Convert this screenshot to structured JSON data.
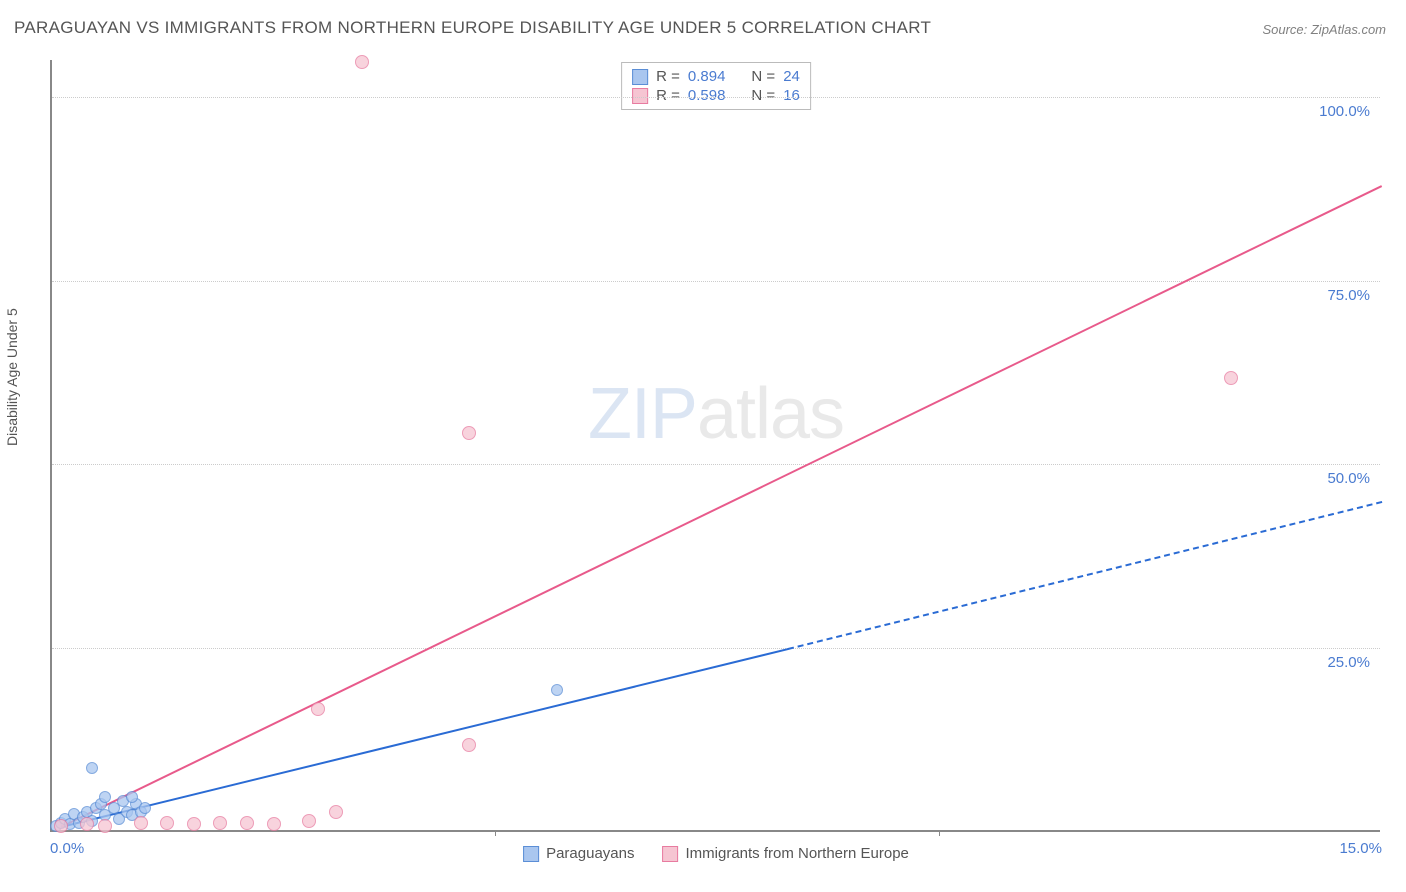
{
  "title": "PARAGUAYAN VS IMMIGRANTS FROM NORTHERN EUROPE DISABILITY AGE UNDER 5 CORRELATION CHART",
  "source": "Source: ZipAtlas.com",
  "y_axis_title": "Disability Age Under 5",
  "watermark_zip": "ZIP",
  "watermark_atlas": "atlas",
  "chart": {
    "type": "scatter",
    "background_color": "#ffffff",
    "grid_color": "#cccccc",
    "axis_color": "#888888",
    "tick_label_color": "#4a7bd0",
    "tick_fontsize": 15,
    "title_fontsize": 17,
    "xlim": [
      0,
      15
    ],
    "ylim": [
      0,
      105
    ],
    "x_tick_step": 5,
    "x_labels": [
      {
        "v": 0,
        "t": "0.0%"
      },
      {
        "v": 15,
        "t": "15.0%"
      }
    ],
    "y_labels": [
      {
        "v": 25,
        "t": "25.0%"
      },
      {
        "v": 50,
        "t": "50.0%"
      },
      {
        "v": 75,
        "t": "75.0%"
      },
      {
        "v": 100,
        "t": "100.0%"
      }
    ],
    "series": [
      {
        "name": "Paraguayans",
        "marker_color_fill": "#a9c6ef",
        "marker_color_stroke": "#5b8ed6",
        "marker_size": 12,
        "r": 0.894,
        "n": 24,
        "trend": {
          "color": "#2a6bd4",
          "width": 2.2,
          "x1": 0.1,
          "y1": 0.8,
          "x2": 8.3,
          "y2": 25.0,
          "dash_from_x": 8.3,
          "x3": 15.0,
          "y3": 45.0
        },
        "points": [
          {
            "x": 0.05,
            "y": 0.5
          },
          {
            "x": 0.1,
            "y": 1.0
          },
          {
            "x": 0.15,
            "y": 1.5
          },
          {
            "x": 0.2,
            "y": 0.8
          },
          {
            "x": 0.25,
            "y": 2.2
          },
          {
            "x": 0.3,
            "y": 1.0
          },
          {
            "x": 0.35,
            "y": 1.8
          },
          {
            "x": 0.4,
            "y": 2.5
          },
          {
            "x": 0.45,
            "y": 1.2
          },
          {
            "x": 0.5,
            "y": 3.0
          },
          {
            "x": 0.55,
            "y": 3.5
          },
          {
            "x": 0.6,
            "y": 2.0
          },
          {
            "x": 0.7,
            "y": 3.0
          },
          {
            "x": 0.75,
            "y": 1.5
          },
          {
            "x": 0.8,
            "y": 4.0
          },
          {
            "x": 0.85,
            "y": 2.5
          },
          {
            "x": 0.9,
            "y": 2.0
          },
          {
            "x": 0.95,
            "y": 3.5
          },
          {
            "x": 1.0,
            "y": 2.5
          },
          {
            "x": 1.05,
            "y": 3.0
          },
          {
            "x": 0.45,
            "y": 8.5
          },
          {
            "x": 0.6,
            "y": 4.5
          },
          {
            "x": 0.9,
            "y": 4.5
          },
          {
            "x": 5.7,
            "y": 19.0
          }
        ]
      },
      {
        "name": "Immigrants from Northern Europe",
        "marker_color_fill": "#f6c5d2",
        "marker_color_stroke": "#e87ba0",
        "marker_size": 14,
        "r": 0.598,
        "n": 16,
        "trend": {
          "color": "#e85a8b",
          "width": 2.2,
          "x1": 0.1,
          "y1": 0.8,
          "x2": 15.0,
          "y2": 88.0
        },
        "points": [
          {
            "x": 0.1,
            "y": 0.5
          },
          {
            "x": 0.4,
            "y": 0.8
          },
          {
            "x": 0.6,
            "y": 0.5
          },
          {
            "x": 1.0,
            "y": 1.0
          },
          {
            "x": 1.3,
            "y": 1.0
          },
          {
            "x": 1.6,
            "y": 0.8
          },
          {
            "x": 1.9,
            "y": 1.0
          },
          {
            "x": 2.2,
            "y": 1.0
          },
          {
            "x": 2.5,
            "y": 0.8
          },
          {
            "x": 2.9,
            "y": 1.2
          },
          {
            "x": 3.2,
            "y": 2.5
          },
          {
            "x": 3.0,
            "y": 16.5
          },
          {
            "x": 3.5,
            "y": 104.5
          },
          {
            "x": 4.7,
            "y": 54.0
          },
          {
            "x": 4.7,
            "y": 11.5
          },
          {
            "x": 13.3,
            "y": 61.5
          }
        ]
      }
    ],
    "r_legend_rows": [
      {
        "swatch_fill": "#a9c6ef",
        "swatch_stroke": "#5b8ed6",
        "r_label": "R =",
        "r_val": "0.894",
        "n_label": "N =",
        "n_val": "24"
      },
      {
        "swatch_fill": "#f6c5d2",
        "swatch_stroke": "#e87ba0",
        "r_label": "R =",
        "r_val": "0.598",
        "n_label": "N =",
        "n_val": "16"
      }
    ],
    "bottom われlegend": [
      {
        "swatch_fill": "#a9c6ef",
        "swatch_stroke": "#5b8ed6",
        "label": "Paraguayans"
      },
      {
        "swatch_fill": "#f6c5d2",
        "swatch_stroke": "#e87ba0",
        "label": "Immigrants from Northern Europe"
      }
    ],
    "bottom_legend": [
      {
        "swatch_fill": "#a9c6ef",
        "swatch_stroke": "#5b8ed6",
        "label": "Paraguayans"
      },
      {
        "swatch_fill": "#f6c5d2",
        "swatch_stroke": "#e87ba0",
        "label": "Immigrants from Northern Europe"
      }
    ]
  }
}
